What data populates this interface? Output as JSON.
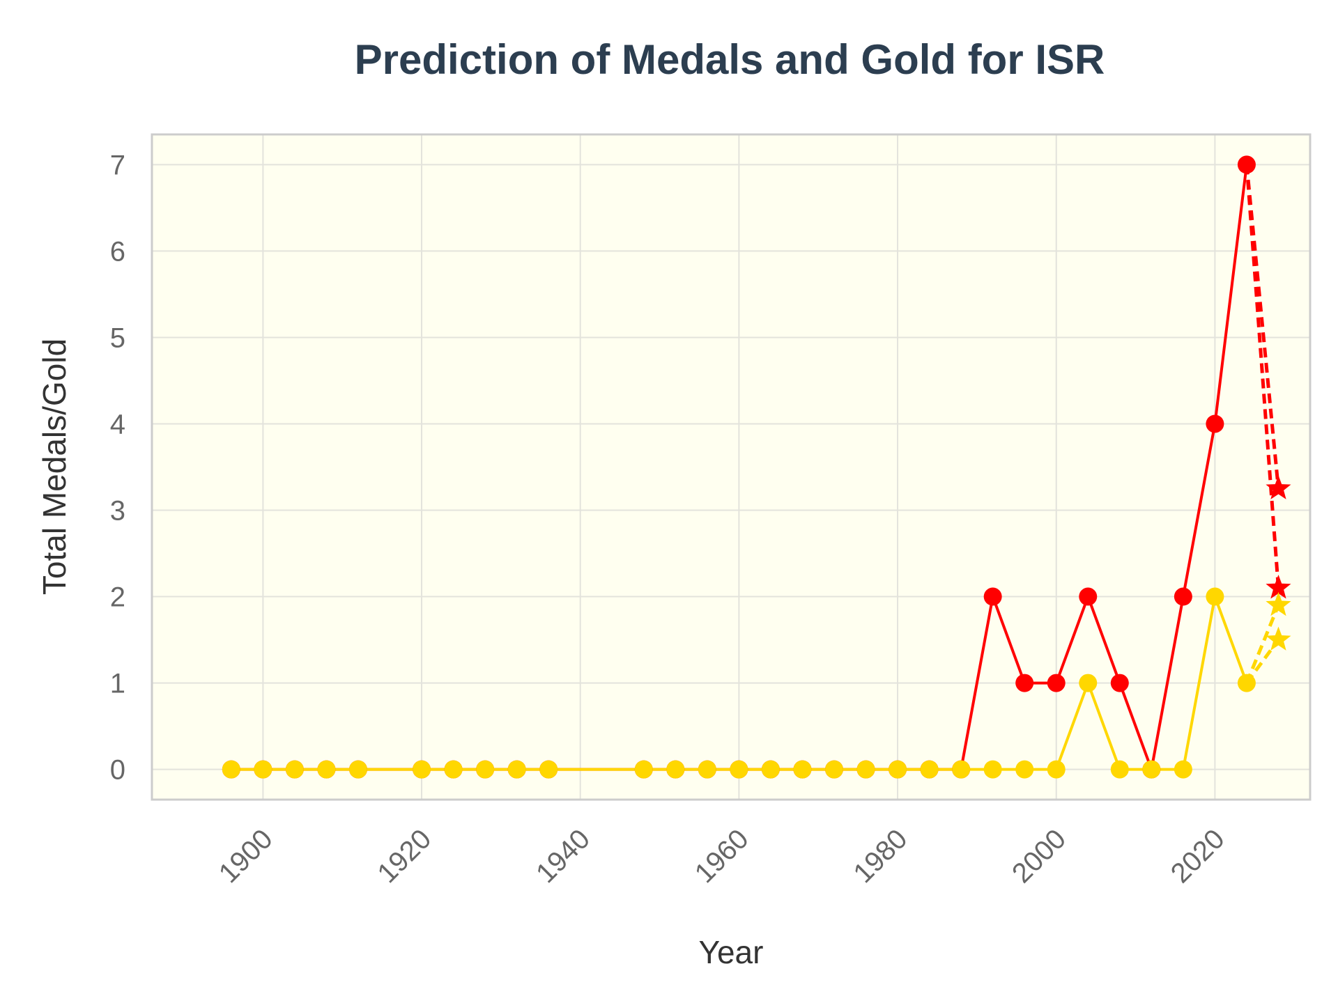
{
  "chart_data": {
    "type": "line",
    "title": "Prediction of Medals and Gold for ISR",
    "xlabel": "Year",
    "ylabel": "Total Medals/Gold",
    "xlim": [
      1886,
      2032
    ],
    "ylim": [
      -0.35,
      7.35
    ],
    "xticks": [
      1900,
      1920,
      1940,
      1960,
      1980,
      2000,
      2020
    ],
    "yticks": [
      0,
      1,
      2,
      3,
      4,
      5,
      6,
      7
    ],
    "grid": true,
    "colors": {
      "plot_background": "#fffff0",
      "frame": "#cccccc",
      "grid": "#e3e3dc",
      "total": "#ff0000",
      "gold": "#ffd700"
    },
    "series": [
      {
        "kind": "total-medals-history",
        "color": "#ff0000",
        "marker": "circle",
        "line": "solid",
        "x": [
          1896,
          1900,
          1904,
          1908,
          1912,
          1920,
          1924,
          1928,
          1932,
          1936,
          1948,
          1952,
          1956,
          1960,
          1964,
          1968,
          1972,
          1976,
          1980,
          1984,
          1988,
          1992,
          1996,
          2000,
          2004,
          2008,
          2012,
          2016,
          2020,
          2024
        ],
        "y": [
          0,
          0,
          0,
          0,
          0,
          0,
          0,
          0,
          0,
          0,
          0,
          0,
          0,
          0,
          0,
          0,
          0,
          0,
          0,
          0,
          0,
          2,
          1,
          1,
          2,
          1,
          0,
          2,
          4,
          7
        ]
      },
      {
        "kind": "gold-medals-history",
        "color": "#ffd700",
        "marker": "circle",
        "line": "solid",
        "x": [
          1896,
          1900,
          1904,
          1908,
          1912,
          1920,
          1924,
          1928,
          1932,
          1936,
          1948,
          1952,
          1956,
          1960,
          1964,
          1968,
          1972,
          1976,
          1980,
          1984,
          1988,
          1992,
          1996,
          2000,
          2004,
          2008,
          2012,
          2016,
          2020,
          2024
        ],
        "y": [
          0,
          0,
          0,
          0,
          0,
          0,
          0,
          0,
          0,
          0,
          0,
          0,
          0,
          0,
          0,
          0,
          0,
          0,
          0,
          0,
          0,
          0,
          0,
          0,
          1,
          0,
          0,
          0,
          2,
          1
        ]
      },
      {
        "kind": "total-medals-prediction",
        "color": "#ff0000",
        "marker": "star",
        "line": "dashed",
        "branches": [
          {
            "x": [
              2024,
              2028
            ],
            "y": [
              7,
              3.25
            ]
          },
          {
            "x": [
              2024,
              2028
            ],
            "y": [
              7,
              2.1
            ]
          }
        ]
      },
      {
        "kind": "gold-medals-prediction",
        "color": "#ffd700",
        "marker": "star",
        "line": "dashed",
        "branches": [
          {
            "x": [
              2024,
              2028
            ],
            "y": [
              1,
              1.9
            ]
          },
          {
            "x": [
              2024,
              2028
            ],
            "y": [
              1,
              1.5
            ]
          }
        ]
      }
    ]
  }
}
